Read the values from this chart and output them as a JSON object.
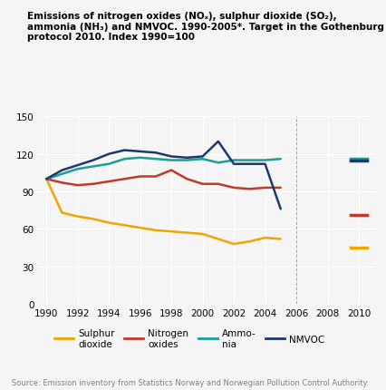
{
  "title": "Emissions of nitrogen oxides (NOₓ), sulphur dioxide (SO₂),\nammonia (NH₃) and NMVOC. 1990-2005*. Target in the Gothenburg\nprotocol 2010. Index 1990=100",
  "source": "Source: Emission inventory from Statistics Norway and Norwegian Pollution Control Authority.",
  "years_main": [
    1990,
    1991,
    1992,
    1993,
    1994,
    1995,
    1996,
    1997,
    1998,
    1999,
    2000,
    2001,
    2002,
    2003,
    2004,
    2005
  ],
  "sulphur": [
    100,
    73,
    70,
    68,
    65,
    63,
    61,
    59,
    58,
    57,
    56,
    52,
    48,
    50,
    53,
    52
  ],
  "nitrogen": [
    100,
    97,
    95,
    96,
    98,
    100,
    102,
    102,
    107,
    100,
    96,
    96,
    93,
    92,
    93,
    93
  ],
  "ammonia": [
    100,
    104,
    108,
    110,
    112,
    116,
    117,
    116,
    115,
    115,
    116,
    113,
    115,
    115,
    115,
    116
  ],
  "nmvoc": [
    100,
    107,
    111,
    115,
    120,
    123,
    122,
    121,
    118,
    117,
    118,
    130,
    112,
    112,
    112,
    76
  ],
  "target_2010": {
    "sulphur": 45,
    "nitrogen": 71,
    "ammonia": 116,
    "nmvoc": 115
  },
  "colors": {
    "sulphur": "#f0a500",
    "nitrogen": "#c0392b",
    "ammonia": "#1a9e96",
    "nmvoc": "#1a3a6b"
  },
  "ylim": [
    0,
    150
  ],
  "yticks": [
    0,
    30,
    60,
    90,
    120,
    150
  ],
  "xticks": [
    1990,
    1992,
    1994,
    1996,
    1998,
    2000,
    2002,
    2004,
    2006,
    2008,
    2010
  ],
  "background_color": "#f0f0f0",
  "plot_bg": "#f0f0f0"
}
